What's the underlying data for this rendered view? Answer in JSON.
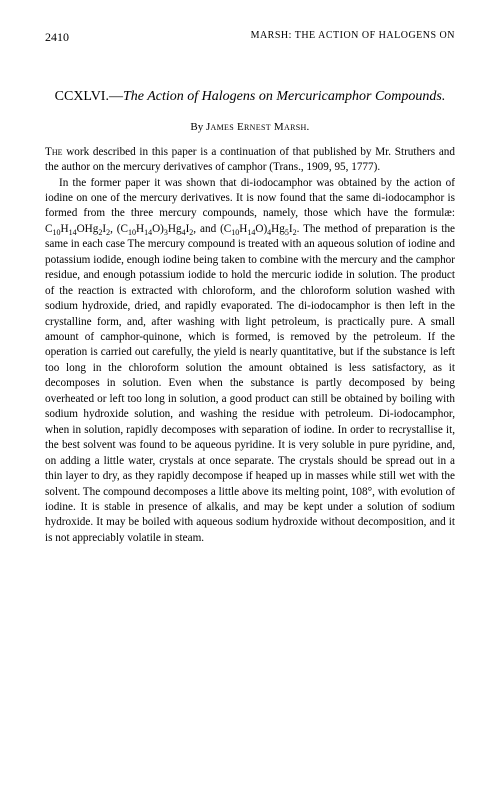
{
  "page_number": "2410",
  "running_header": "MARSH: THE ACTION OF HALOGENS ON",
  "title_roman": "CCXLVI.—",
  "title_main": "The Action of Halogens on Mercuricamphor Compounds.",
  "author_by": "By ",
  "author_name": "James Ernest Marsh.",
  "para1_lead": "The",
  "para1": " work described in this paper is a continuation of that published by Mr. Struthers and the author on the mercury derivatives of camphor (Trans., 1909, 95, 1777).",
  "para2a": "In the former paper it was shown that di-iodocamphor was obtained by the action of iodine on one of the mercury derivatives. It is now found that the same di-iodocamphor is formed from the three mercury compounds, namely, those which have the formulæ: C",
  "f1a": "10",
  "f1b": "14",
  "f1c": "2",
  "f1d": "2",
  "para2b": "H",
  "para2c": "OHg",
  "para2d": "I",
  "para2e": ", (C",
  "f2a": "10",
  "f2b": "14",
  "f2c": "3",
  "f2d": "4",
  "f2e": "2",
  "para2f": "H",
  "para2g": "O)",
  "para2h": "Hg",
  "para2i": "I",
  "para2j": ", and (C",
  "f3a": "10",
  "f3b": "14",
  "f3c": "4",
  "f3d": "5",
  "f3e": "2",
  "para2k": "H",
  "para2l": "O)",
  "para2m": "Hg",
  "para2n": "I",
  "para2o": ". The method of preparation is the same in each case  The mercury compound is treated with an aqueous solution of iodine and potassium iodide, enough iodine being taken to combine with the mercury and the camphor residue, and enough potassium iodide to hold the mercuric iodide in solution. The product of the reaction is extracted with chloroform, and the chloroform solution washed with sodium hydroxide, dried, and rapidly evaporated. The di-iodocamphor is then left in the crystalline form, and, after washing with light petroleum, is practically pure. A small amount of camphor-quinone, which is formed, is removed by the petroleum. If the operation is carried out carefully, the yield is nearly quantitative, but if the substance is left too long in the chloroform solution the amount obtained is less satisfactory, as it decomposes in solution. Even when the substance is partly decomposed by being overheated or left too long in solution, a good product can still be obtained by boiling with sodium hydroxide solution, and washing the residue with petroleum. Di-iodocamphor, when in solution, rapidly decomposes with separation of iodine. In order to recrystallise it, the best solvent was found to be aqueous pyridine. It is very soluble in pure pyridine, and, on adding a little water, crystals at once separate. The crystals should be spread out in a thin layer to dry, as they rapidly decompose if heaped up in masses while still wet with the solvent. The compound decomposes a little above its melting point, 108°, with evolution of iodine. It is stable in presence of alkalis, and may be kept under a solution of sodium hydroxide. It may be boiled with aqueous sodium hydroxide without decomposition, and it is not appreciably volatile in steam."
}
